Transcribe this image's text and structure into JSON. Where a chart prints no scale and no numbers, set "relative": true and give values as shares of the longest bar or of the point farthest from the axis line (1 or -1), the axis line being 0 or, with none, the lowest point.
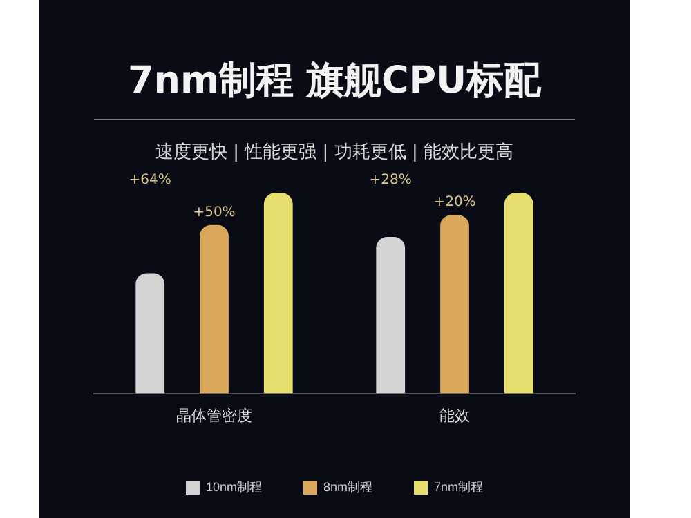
{
  "chart_data": {
    "type": "bar",
    "title": "7nm制程  旗舰CPU标配",
    "subtitle": "速度更快 | 性能更强 | 功耗更低 | 能效比更高",
    "categories": [
      "晶体管密度",
      "能效"
    ],
    "relative": true,
    "series": [
      {
        "name": "10nm制程",
        "color": "#d4d4d4",
        "values": [
          0.6,
          0.78
        ]
      },
      {
        "name": "8nm制程",
        "color": "#d9a85a",
        "values": [
          0.84,
          0.89
        ]
      },
      {
        "name": "7nm制程",
        "color": "#e6df6e",
        "values": [
          1,
          1
        ]
      }
    ],
    "annotations": [
      "+64%",
      "+50%",
      "+28%",
      "+20%"
    ],
    "legend": "bottom"
  }
}
